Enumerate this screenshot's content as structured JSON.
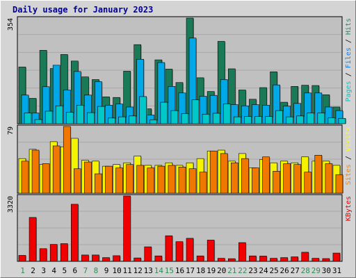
{
  "chart_data": {
    "type": "bar",
    "title": "Daily usage for January 2023",
    "categories": [
      "1",
      "2",
      "3",
      "4",
      "5",
      "6",
      "7",
      "8",
      "9",
      "10",
      "11",
      "12",
      "13",
      "14",
      "15",
      "16",
      "17",
      "18",
      "19",
      "20",
      "21",
      "22",
      "23",
      "24",
      "25",
      "26",
      "27",
      "28",
      "29",
      "30",
      "31"
    ],
    "weekend_days": [
      "1",
      "7",
      "8",
      "14",
      "15",
      "21",
      "22",
      "28",
      "29"
    ],
    "weekday_color": "#00805c",
    "weekend_color": "#2e8b57",
    "panels": [
      {
        "id": "hits-files-pages",
        "ymax_label": "354",
        "ymax": 354,
        "legend": [
          {
            "text": "Pages",
            "color": "#00c8c8"
          },
          {
            "text": " / ",
            "color": "#000000"
          },
          {
            "text": "Files",
            "color": "#0080ff"
          },
          {
            "text": " / ",
            "color": "#000000"
          },
          {
            "text": "Hits",
            "color": "#1f8c5c"
          }
        ],
        "series": [
          {
            "name": "Hits",
            "color": "#1a7a58",
            "values": [
              190,
              85,
              246,
              185,
              232,
              210,
              157,
              148,
              90,
              88,
              176,
              265,
              50,
              214,
              183,
              138,
              354,
              154,
              108,
              276,
              184,
              113,
              82,
              121,
              174,
              72,
              125,
              129,
              128,
              97,
              56
            ]
          },
          {
            "name": "Files",
            "color": "#00a8e8",
            "values": [
              96,
              36,
              124,
              196,
              113,
              175,
              96,
              141,
              62,
              66,
              56,
              216,
              29,
              205,
              125,
              103,
              287,
              92,
              95,
              148,
              64,
              60,
              64,
              62,
              130,
              59,
              68,
              103,
              103,
              56,
              44
            ]
          },
          {
            "name": "Pages",
            "color": "#00c8c8",
            "values": [
              36,
              14,
              42,
              60,
              38,
              62,
              37,
              58,
              19,
              23,
              26,
              91,
              13,
              72,
              44,
              34,
              80,
              32,
              35,
              66,
              23,
              24,
              24,
              24,
              44,
              23,
              26,
              36,
              36,
              20,
              18
            ]
          }
        ]
      },
      {
        "id": "visits-sites",
        "ymax_label": "79",
        "ymax": 79,
        "legend": [
          {
            "text": "Sites",
            "color": "#ff8000"
          },
          {
            "text": " / ",
            "color": "#000000"
          },
          {
            "text": "Visits",
            "color": "#ffff00"
          }
        ],
        "series": [
          {
            "name": "Visits",
            "color": "#f4f400",
            "values": [
              41,
              52,
              34,
              61,
              55,
              65,
              39,
              38,
              32,
              34,
              36,
              44,
              33,
              33,
              36,
              33,
              36,
              41,
              50,
              51,
              38,
              47,
              30,
              40,
              36,
              38,
              36,
              43,
              38,
              38,
              33
            ]
          },
          {
            "name": "Sites",
            "color": "#f07800",
            "values": [
              38,
              51,
              35,
              56,
              79,
              29,
              37,
              23,
              32,
              30,
              34,
              33,
              30,
              32,
              33,
              31,
              29,
              25,
              50,
              47,
              36,
              41,
              30,
              43,
              26,
              35,
              34,
              25,
              45,
              35,
              22
            ]
          }
        ]
      },
      {
        "id": "kbytes",
        "ymax_label": "3320",
        "ymax": 3320,
        "legend": [
          {
            "text": "KBytes",
            "color": "#e00000"
          }
        ],
        "series": [
          {
            "name": "KBytes",
            "color": "#f00000",
            "values": [
              302,
              2230,
              644,
              862,
              900,
              2900,
              322,
              322,
              190,
              286,
              3320,
              172,
              738,
              276,
              1300,
              1000,
              1170,
              276,
              1080,
              155,
              135,
              952,
              276,
              268,
              155,
              190,
              229,
              462,
              155,
              140,
              421
            ]
          }
        ]
      }
    ]
  }
}
